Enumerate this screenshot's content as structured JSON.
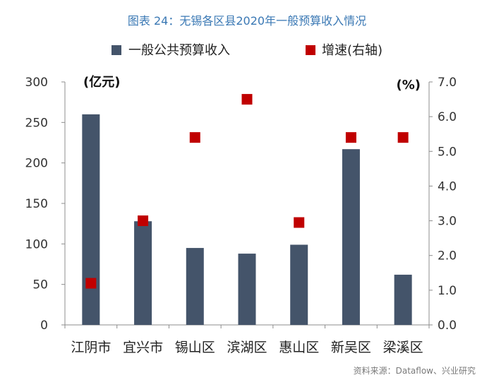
{
  "title": "图表 24：无锡各区县2020年一般预算收入情况",
  "source": "资料来源：Dataflow、兴业研究",
  "chart_data": {
    "type": "bar",
    "categories": [
      "江阴市",
      "宜兴市",
      "锡山区",
      "滨湖区",
      "惠山区",
      "新吴区",
      "梁溪区"
    ],
    "series": [
      {
        "name": "一般公共预算收入",
        "type": "bar",
        "axis": "left",
        "color": "#44546a",
        "values": [
          260,
          128,
          95,
          88,
          99,
          217,
          62
        ]
      },
      {
        "name": "增速(右轴)",
        "type": "scatter",
        "axis": "right",
        "color": "#c00000",
        "values": [
          1.2,
          3.0,
          5.4,
          6.5,
          2.95,
          5.4,
          5.4
        ]
      }
    ],
    "ylabel": "(亿元)",
    "y2label": "(%)",
    "ylim": [
      0,
      300
    ],
    "y2lim": [
      0,
      7.0
    ],
    "yticks": [
      "0",
      "50",
      "100",
      "150",
      "200",
      "250",
      "300"
    ],
    "y2ticks": [
      "0.0",
      "1.0",
      "2.0",
      "3.0",
      "4.0",
      "5.0",
      "6.0",
      "7.0"
    ],
    "legend_position": "top",
    "grid": false
  }
}
